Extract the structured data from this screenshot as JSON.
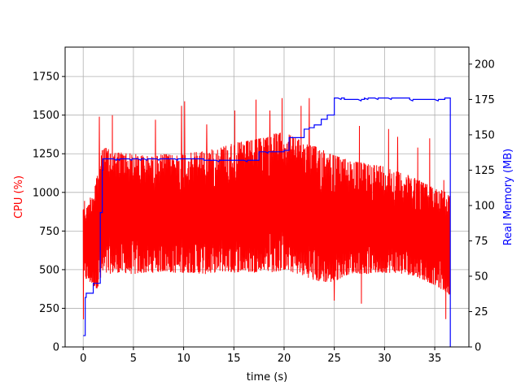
{
  "chart_data": {
    "type": "line",
    "title": "",
    "xlabel": "time (s)",
    "ylabel": "CPU (%)",
    "y2label": "Real Memory (MB)",
    "xlim": [
      -1.8,
      38.4
    ],
    "ylim": [
      0,
      1940
    ],
    "y2lim": [
      0,
      212
    ],
    "xticks": [
      0,
      5,
      10,
      15,
      20,
      25,
      30,
      35
    ],
    "yticks": [
      0,
      250,
      500,
      750,
      1000,
      1250,
      1500,
      1750
    ],
    "y2ticks": [
      0,
      25,
      50,
      75,
      100,
      125,
      150,
      175,
      200
    ],
    "grid": true,
    "colors": {
      "cpu": "#ff0000",
      "memory": "#0000ff"
    },
    "series": [
      {
        "axis": "left",
        "style": "dense oscillation",
        "x": [
          0,
          0.1,
          0.2,
          0.4,
          0.6,
          0.8,
          1,
          1.2,
          1.5,
          1.8,
          2,
          2.5,
          3,
          4,
          5,
          6,
          7,
          8,
          9,
          10,
          11,
          12,
          13,
          14,
          15,
          16,
          17,
          18,
          19,
          20,
          21,
          22,
          23,
          24,
          25,
          26,
          27,
          28,
          29,
          30,
          31,
          32,
          33,
          34,
          35,
          36,
          36.5
        ],
        "low": [
          80,
          420,
          440,
          430,
          420,
          410,
          400,
          380,
          380,
          440,
          460,
          470,
          480,
          480,
          470,
          480,
          480,
          490,
          480,
          480,
          480,
          470,
          480,
          490,
          480,
          490,
          480,
          500,
          480,
          500,
          480,
          460,
          430,
          420,
          420,
          460,
          480,
          470,
          480,
          480,
          480,
          470,
          460,
          430,
          400,
          360,
          340
        ],
        "high": [
          1030,
          960,
          930,
          900,
          950,
          990,
          1020,
          1080,
          1150,
          1250,
          1300,
          1280,
          1260,
          1260,
          1250,
          1240,
          1230,
          1250,
          1240,
          1250,
          1260,
          1270,
          1280,
          1300,
          1320,
          1330,
          1340,
          1360,
          1380,
          1390,
          1360,
          1320,
          1300,
          1280,
          1240,
          1220,
          1200,
          1190,
          1180,
          1170,
          1140,
          1120,
          1100,
          1060,
          1030,
          1010,
          980
        ],
        "spikes": [
          [
            1.6,
            1490
          ],
          [
            2.9,
            1500
          ],
          [
            7.2,
            1470
          ],
          [
            9.8,
            1560
          ],
          [
            10.1,
            1590
          ],
          [
            12.3,
            1440
          ],
          [
            15.1,
            1530
          ],
          [
            17.2,
            1600
          ],
          [
            18.6,
            1530
          ],
          [
            19.8,
            1610
          ],
          [
            21.7,
            1560
          ],
          [
            22.5,
            1610
          ],
          [
            27.5,
            1430
          ],
          [
            30.4,
            1410
          ],
          [
            31.3,
            1360
          ],
          [
            33.3,
            1290
          ],
          [
            34.5,
            1350
          ],
          [
            35.9,
            1080
          ],
          [
            36.1,
            180
          ],
          [
            25.0,
            300
          ],
          [
            27.7,
            280
          ],
          [
            36.4,
            340
          ]
        ]
      },
      {
        "axis": "right",
        "x": [
          0,
          0.2,
          0.3,
          0.8,
          1.0,
          1.5,
          1.7,
          1.9,
          1.95,
          3,
          10,
          12,
          15,
          17.3,
          17.5,
          19,
          20,
          20.5,
          21.5,
          22,
          22.5,
          23,
          23.7,
          24.3,
          24.8,
          25.0,
          26,
          27,
          28,
          30,
          31,
          32,
          32.5,
          34,
          35,
          36,
          36.5,
          36.55
        ],
        "values": [
          8,
          35,
          38,
          38,
          45,
          45,
          95,
          125,
          133,
          133,
          133,
          132,
          132,
          132,
          138,
          138,
          139,
          148,
          148,
          154,
          155,
          157,
          161,
          164,
          164,
          176,
          175,
          175,
          176,
          176,
          176,
          176,
          175,
          175,
          175,
          176,
          176,
          0
        ]
      }
    ]
  }
}
